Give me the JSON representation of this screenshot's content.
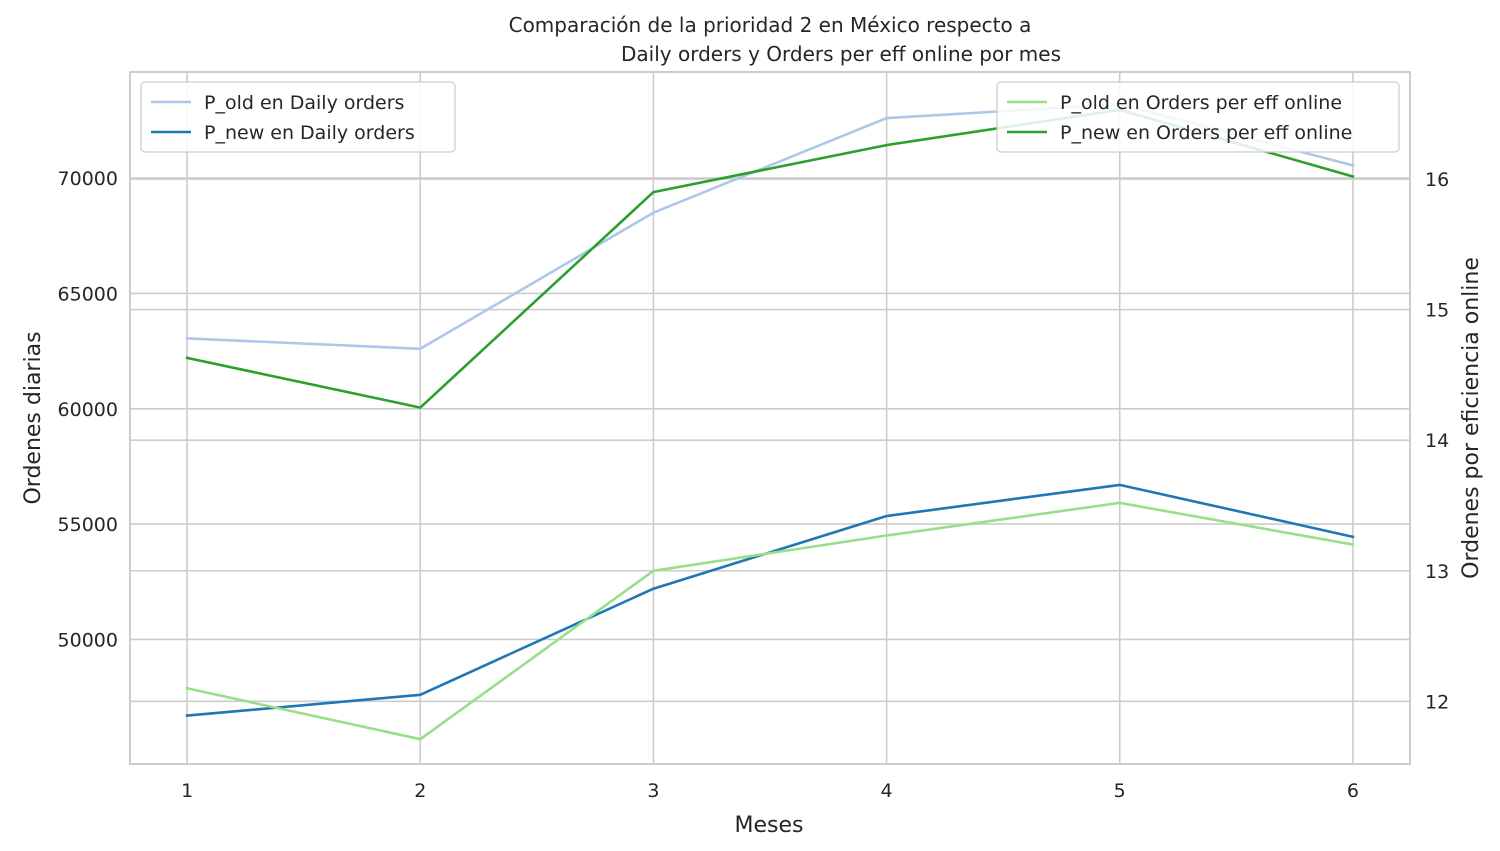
{
  "chart_data": {
    "type": "line",
    "title_line1": "Comparación de la prioridad 2 en México respecto a",
    "title_line2": "Daily orders y Orders per eff online por mes",
    "xlabel": "Meses",
    "ylabel_left": "Ordenes diarias",
    "ylabel_right": "Ordenes por eficiencia online",
    "x": [
      1,
      2,
      3,
      4,
      5,
      6
    ],
    "x_ticks": [
      "1",
      "2",
      "3",
      "4",
      "5",
      "6"
    ],
    "left_axis": {
      "ylim": [
        44600,
        74600
      ],
      "ticks": [
        50000,
        55000,
        60000,
        65000,
        70000
      ],
      "tick_labels": [
        "50000",
        "55000",
        "60000",
        "65000",
        "70000"
      ]
    },
    "right_axis": {
      "ylim": [
        11.52,
        16.82
      ],
      "ticks": [
        12,
        13,
        14,
        15,
        16
      ],
      "tick_labels": [
        "12",
        "13",
        "14",
        "15",
        "16"
      ]
    },
    "series": [
      {
        "name": "P_old en Daily orders",
        "axis": "left",
        "color": "#aec7e8",
        "values": [
          63050,
          62600,
          68500,
          72600,
          73200,
          70550
        ]
      },
      {
        "name": "P_new en Daily orders",
        "axis": "left",
        "color": "#1f77b4",
        "values": [
          46700,
          47600,
          52200,
          55350,
          56700,
          54450
        ]
      },
      {
        "name": "P_old en Orders per eff online",
        "axis": "right",
        "color": "#98df8a",
        "values": [
          12.1,
          11.71,
          13.0,
          13.27,
          13.52,
          13.2
        ]
      },
      {
        "name": "P_new en Orders per eff online",
        "axis": "right",
        "color": "#2ca02c",
        "values": [
          14.63,
          14.25,
          15.9,
          16.26,
          16.53,
          16.02
        ]
      }
    ],
    "grid": true,
    "legend_left_placement": "upper-left",
    "legend_right_placement": "upper-right"
  }
}
